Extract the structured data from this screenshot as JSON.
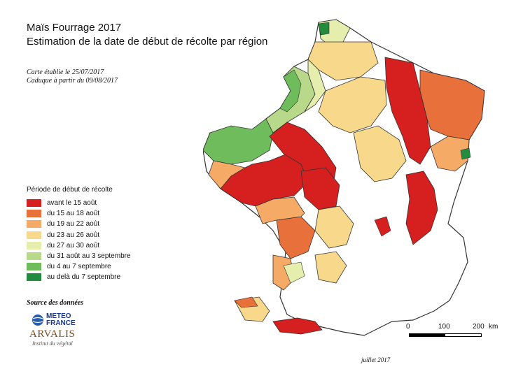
{
  "title": {
    "line1": "Maïs Fourrage 2017",
    "line2": "Estimation de la date de début de récolte par région"
  },
  "meta": {
    "established": "Carte établie le 25/07/2017",
    "expires": "Caduque à partir du 09/08/2017"
  },
  "legend": {
    "title": "Période de début de récolte",
    "items": [
      {
        "label": "avant le 15 août",
        "color": "#d61f1f"
      },
      {
        "label": "du 15 au 18 août",
        "color": "#e8703a"
      },
      {
        "label": "du 19 au 22 août",
        "color": "#f5aa66"
      },
      {
        "label": "du 23 au 26 août",
        "color": "#f8d98c"
      },
      {
        "label": "du 27 au 30 août",
        "color": "#e6eeae"
      },
      {
        "label": "du 31 août au 3 septembre",
        "color": "#b8d98a"
      },
      {
        "label": "du 4 au 7 septembre",
        "color": "#6fbc5c"
      },
      {
        "label": "au delà du 7 septembre",
        "color": "#238b3e"
      }
    ]
  },
  "source": {
    "label": "Source des données",
    "meteo_line1": "METEO",
    "meteo_line2": "FRANCE",
    "arvalis_name": "ARVALIS",
    "arvalis_sub": "Institut du végétal"
  },
  "scale": {
    "tick0": "0",
    "tick1": "100",
    "tick2": "200",
    "unit": "km"
  },
  "credit": "juillet 2017",
  "map": {
    "region": "France",
    "zones": [
      {
        "name": "bretagne",
        "period": "du 4 au 7 septembre",
        "color": "#6fbc5c"
      },
      {
        "name": "cotentin",
        "period": "du 4 au 7 septembre",
        "color": "#6fbc5c"
      },
      {
        "name": "nord",
        "period": "au delà du 7 septembre",
        "color": "#238b3e"
      },
      {
        "name": "pays-de-la-loire",
        "period": "avant le 15 août",
        "color": "#d61f1f"
      },
      {
        "name": "centre",
        "period": "avant le 15 août",
        "color": "#d61f1f"
      },
      {
        "name": "lorraine",
        "period": "avant le 15 août",
        "color": "#d61f1f"
      },
      {
        "name": "alpes",
        "period": "avant le 15 août",
        "color": "#d61f1f"
      },
      {
        "name": "pyrenees",
        "period": "avant le 15 août",
        "color": "#d61f1f"
      },
      {
        "name": "alsace",
        "period": "du 15 au 18 août",
        "color": "#e8703a"
      },
      {
        "name": "limousin",
        "period": "du 15 au 18 août",
        "color": "#e8703a"
      },
      {
        "name": "aquitaine",
        "period": "du 19 au 22 août",
        "color": "#f5aa66"
      }
    ]
  }
}
